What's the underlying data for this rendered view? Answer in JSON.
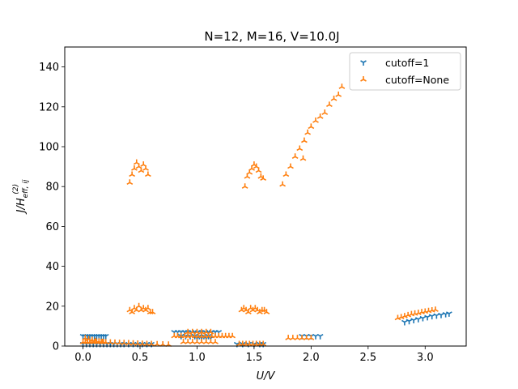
{
  "chart_data": {
    "type": "scatter",
    "title": "N=12, M=16, V=10.0J",
    "xlabel": "U/V",
    "ylabel": "J/H_eff,ij^(2)",
    "ylabel_main": "J/H",
    "ylabel_sup": "(2)",
    "ylabel_sub": "eff, ij",
    "xlim": [
      -0.16,
      3.36
    ],
    "ylim": [
      0,
      150
    ],
    "xticks": [
      0.0,
      0.5,
      1.0,
      1.5,
      2.0,
      2.5,
      3.0
    ],
    "xtick_labels": [
      "0.0",
      "0.5",
      "1.0",
      "1.5",
      "2.0",
      "2.5",
      "3.0"
    ],
    "yticks": [
      0,
      20,
      40,
      60,
      80,
      100,
      120,
      140
    ],
    "ytick_labels": [
      "0",
      "20",
      "40",
      "60",
      "80",
      "100",
      "120",
      "140"
    ],
    "legend_position": "upper-right",
    "series": [
      {
        "name": "cutoff=1",
        "color": "#1f77b4",
        "marker": "tri-down",
        "x": [
          0.0,
          0.02,
          0.04,
          0.06,
          0.08,
          0.1,
          0.12,
          0.14,
          0.16,
          0.18,
          0.2,
          0.0,
          0.03,
          0.06,
          0.09,
          0.12,
          0.15,
          0.18,
          0.21,
          0.24,
          0.27,
          0.3,
          0.33,
          0.36,
          0.4,
          0.44,
          0.48,
          0.52,
          0.56,
          0.6,
          0.8,
          0.83,
          0.86,
          0.89,
          0.92,
          0.95,
          0.98,
          1.01,
          1.04,
          1.07,
          1.1,
          1.13,
          1.16,
          1.19,
          0.86,
          0.9,
          0.94,
          0.98,
          1.02,
          1.06,
          1.1,
          1.0,
          1.04,
          1.08,
          1.12,
          1.35,
          1.4,
          1.45,
          1.5,
          1.55,
          1.58,
          1.92,
          1.96,
          2.0,
          2.04,
          2.08,
          2.82,
          2.86,
          2.9,
          2.94,
          2.98,
          3.02,
          3.06,
          3.1,
          3.14,
          3.18,
          3.21
        ],
        "y": [
          5,
          5,
          5,
          5,
          5,
          5,
          5,
          5,
          5,
          5,
          5,
          1,
          1,
          1,
          1,
          1,
          1,
          1,
          1,
          1,
          1,
          1,
          1,
          1,
          1,
          1,
          1,
          1,
          1,
          1,
          7,
          7,
          7,
          7,
          7,
          7,
          7,
          7,
          7,
          7,
          7,
          7,
          7,
          7,
          5,
          5,
          5,
          5,
          5,
          5,
          5,
          4,
          4,
          4,
          4,
          1,
          1,
          1,
          1,
          1,
          1,
          5,
          5,
          5,
          5,
          5,
          12,
          12.5,
          13,
          13.5,
          14,
          14.5,
          15,
          15.3,
          15.6,
          16,
          16.3
        ]
      },
      {
        "name": "cutoff=None",
        "color": "#ff7f0e",
        "marker": "tri-up",
        "x": [
          0.0,
          0.02,
          0.04,
          0.06,
          0.08,
          0.1,
          0.12,
          0.14,
          0.16,
          0.18,
          0.02,
          0.05,
          0.08,
          0.11,
          0.14,
          0.17,
          0.2,
          0.24,
          0.28,
          0.32,
          0.36,
          0.4,
          0.44,
          0.48,
          0.52,
          0.56,
          0.6,
          0.65,
          0.7,
          0.75,
          0.41,
          0.43,
          0.45,
          0.47,
          0.49,
          0.51,
          0.53,
          0.55,
          0.57,
          0.41,
          0.43,
          0.45,
          0.47,
          0.49,
          0.51,
          0.53,
          0.55,
          0.57,
          0.59,
          0.61,
          0.8,
          0.83,
          0.86,
          0.89,
          0.92,
          0.95,
          0.98,
          1.01,
          1.04,
          1.07,
          1.1,
          1.13,
          1.16,
          1.19,
          1.22,
          1.25,
          1.28,
          1.31,
          0.92,
          0.96,
          1.0,
          1.04,
          1.08,
          1.12,
          0.88,
          0.92,
          0.96,
          1.0,
          1.04,
          1.08,
          1.12,
          1.16,
          1.39,
          1.41,
          1.43,
          1.45,
          1.47,
          1.49,
          1.51,
          1.53,
          1.55,
          1.57,
          1.59,
          1.61,
          1.42,
          1.44,
          1.46,
          1.48,
          1.5,
          1.52,
          1.54,
          1.56,
          1.58,
          1.37,
          1.4,
          1.43,
          1.46,
          1.49,
          1.52,
          1.55,
          1.58,
          1.75,
          1.78,
          1.82,
          1.86,
          1.9,
          1.94,
          1.97,
          2.0,
          2.04,
          2.08,
          2.12,
          2.16,
          2.2,
          2.24,
          2.27,
          1.93,
          1.8,
          1.84,
          1.88,
          1.92,
          1.96,
          2.0,
          2.76,
          2.79,
          2.82,
          2.85,
          2.88,
          2.91,
          2.94,
          2.97,
          3.0,
          3.03,
          3.06,
          3.09
        ],
        "y": [
          2,
          2,
          2,
          2,
          2,
          2,
          2,
          2,
          2,
          2,
          4,
          3.5,
          3,
          2.6,
          2.3,
          2.1,
          1.9,
          1.8,
          1.7,
          1.6,
          1.5,
          1.4,
          1.3,
          1.2,
          1.1,
          1.0,
          1.0,
          0.9,
          0.8,
          0.7,
          82,
          86,
          89,
          92,
          90,
          88,
          91,
          89,
          86,
          18,
          17,
          19,
          18,
          20,
          18,
          19,
          18,
          19,
          17,
          17,
          5,
          5,
          5,
          5,
          5,
          5,
          5,
          5,
          5,
          5,
          5,
          5,
          5,
          5,
          5,
          5,
          5,
          5,
          7,
          7,
          7,
          7,
          7,
          7,
          2,
          2,
          2,
          2,
          2,
          2,
          2,
          2,
          18,
          19,
          18,
          17,
          19,
          18,
          19,
          18,
          17,
          18,
          18,
          17,
          80,
          85,
          87,
          89,
          91,
          90,
          88,
          85,
          84,
          1,
          1,
          1,
          1,
          1,
          1,
          1,
          1,
          81,
          86,
          90,
          95,
          99,
          103,
          107,
          110,
          113,
          115,
          117,
          121,
          124,
          126,
          130,
          94,
          4,
          4,
          4,
          4,
          4,
          4,
          14,
          14.5,
          15,
          15.5,
          16,
          16.3,
          16.6,
          17,
          17.3,
          17.6,
          17.9,
          18.2
        ]
      }
    ]
  }
}
